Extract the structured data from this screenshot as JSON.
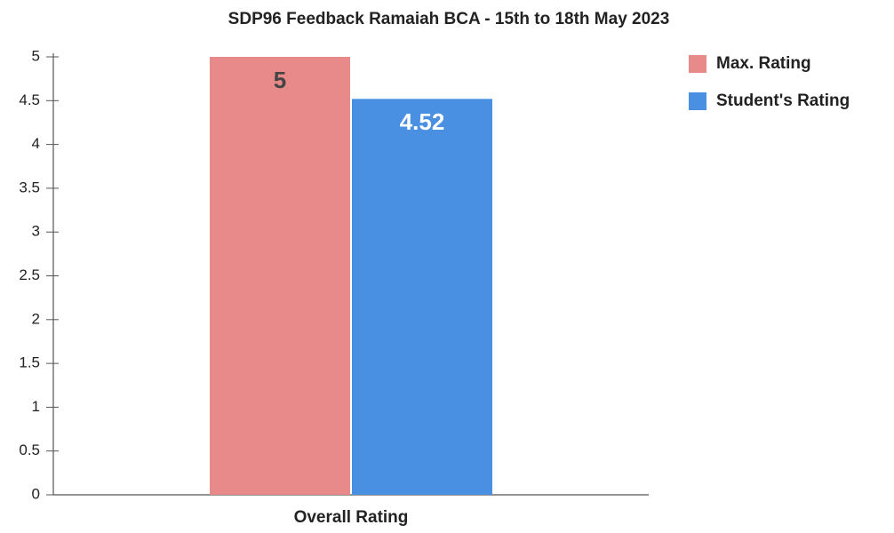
{
  "chart_data": {
    "type": "bar",
    "title": "SDP96 Feedback Ramaiah BCA - 15th to 18th May 2023",
    "categories": [
      "Overall Rating"
    ],
    "series": [
      {
        "name": "Max. Rating",
        "color": "#e8898a",
        "values": [
          5
        ]
      },
      {
        "name": "Student's Rating",
        "color": "#4a90e2",
        "values": [
          4.52
        ]
      }
    ],
    "ylim": [
      0,
      5
    ],
    "yticks": [
      0,
      0.5,
      1,
      1.5,
      2,
      2.5,
      3,
      3.5,
      4,
      4.5,
      5
    ],
    "grid": false,
    "legend": "right",
    "data_labels": true
  }
}
